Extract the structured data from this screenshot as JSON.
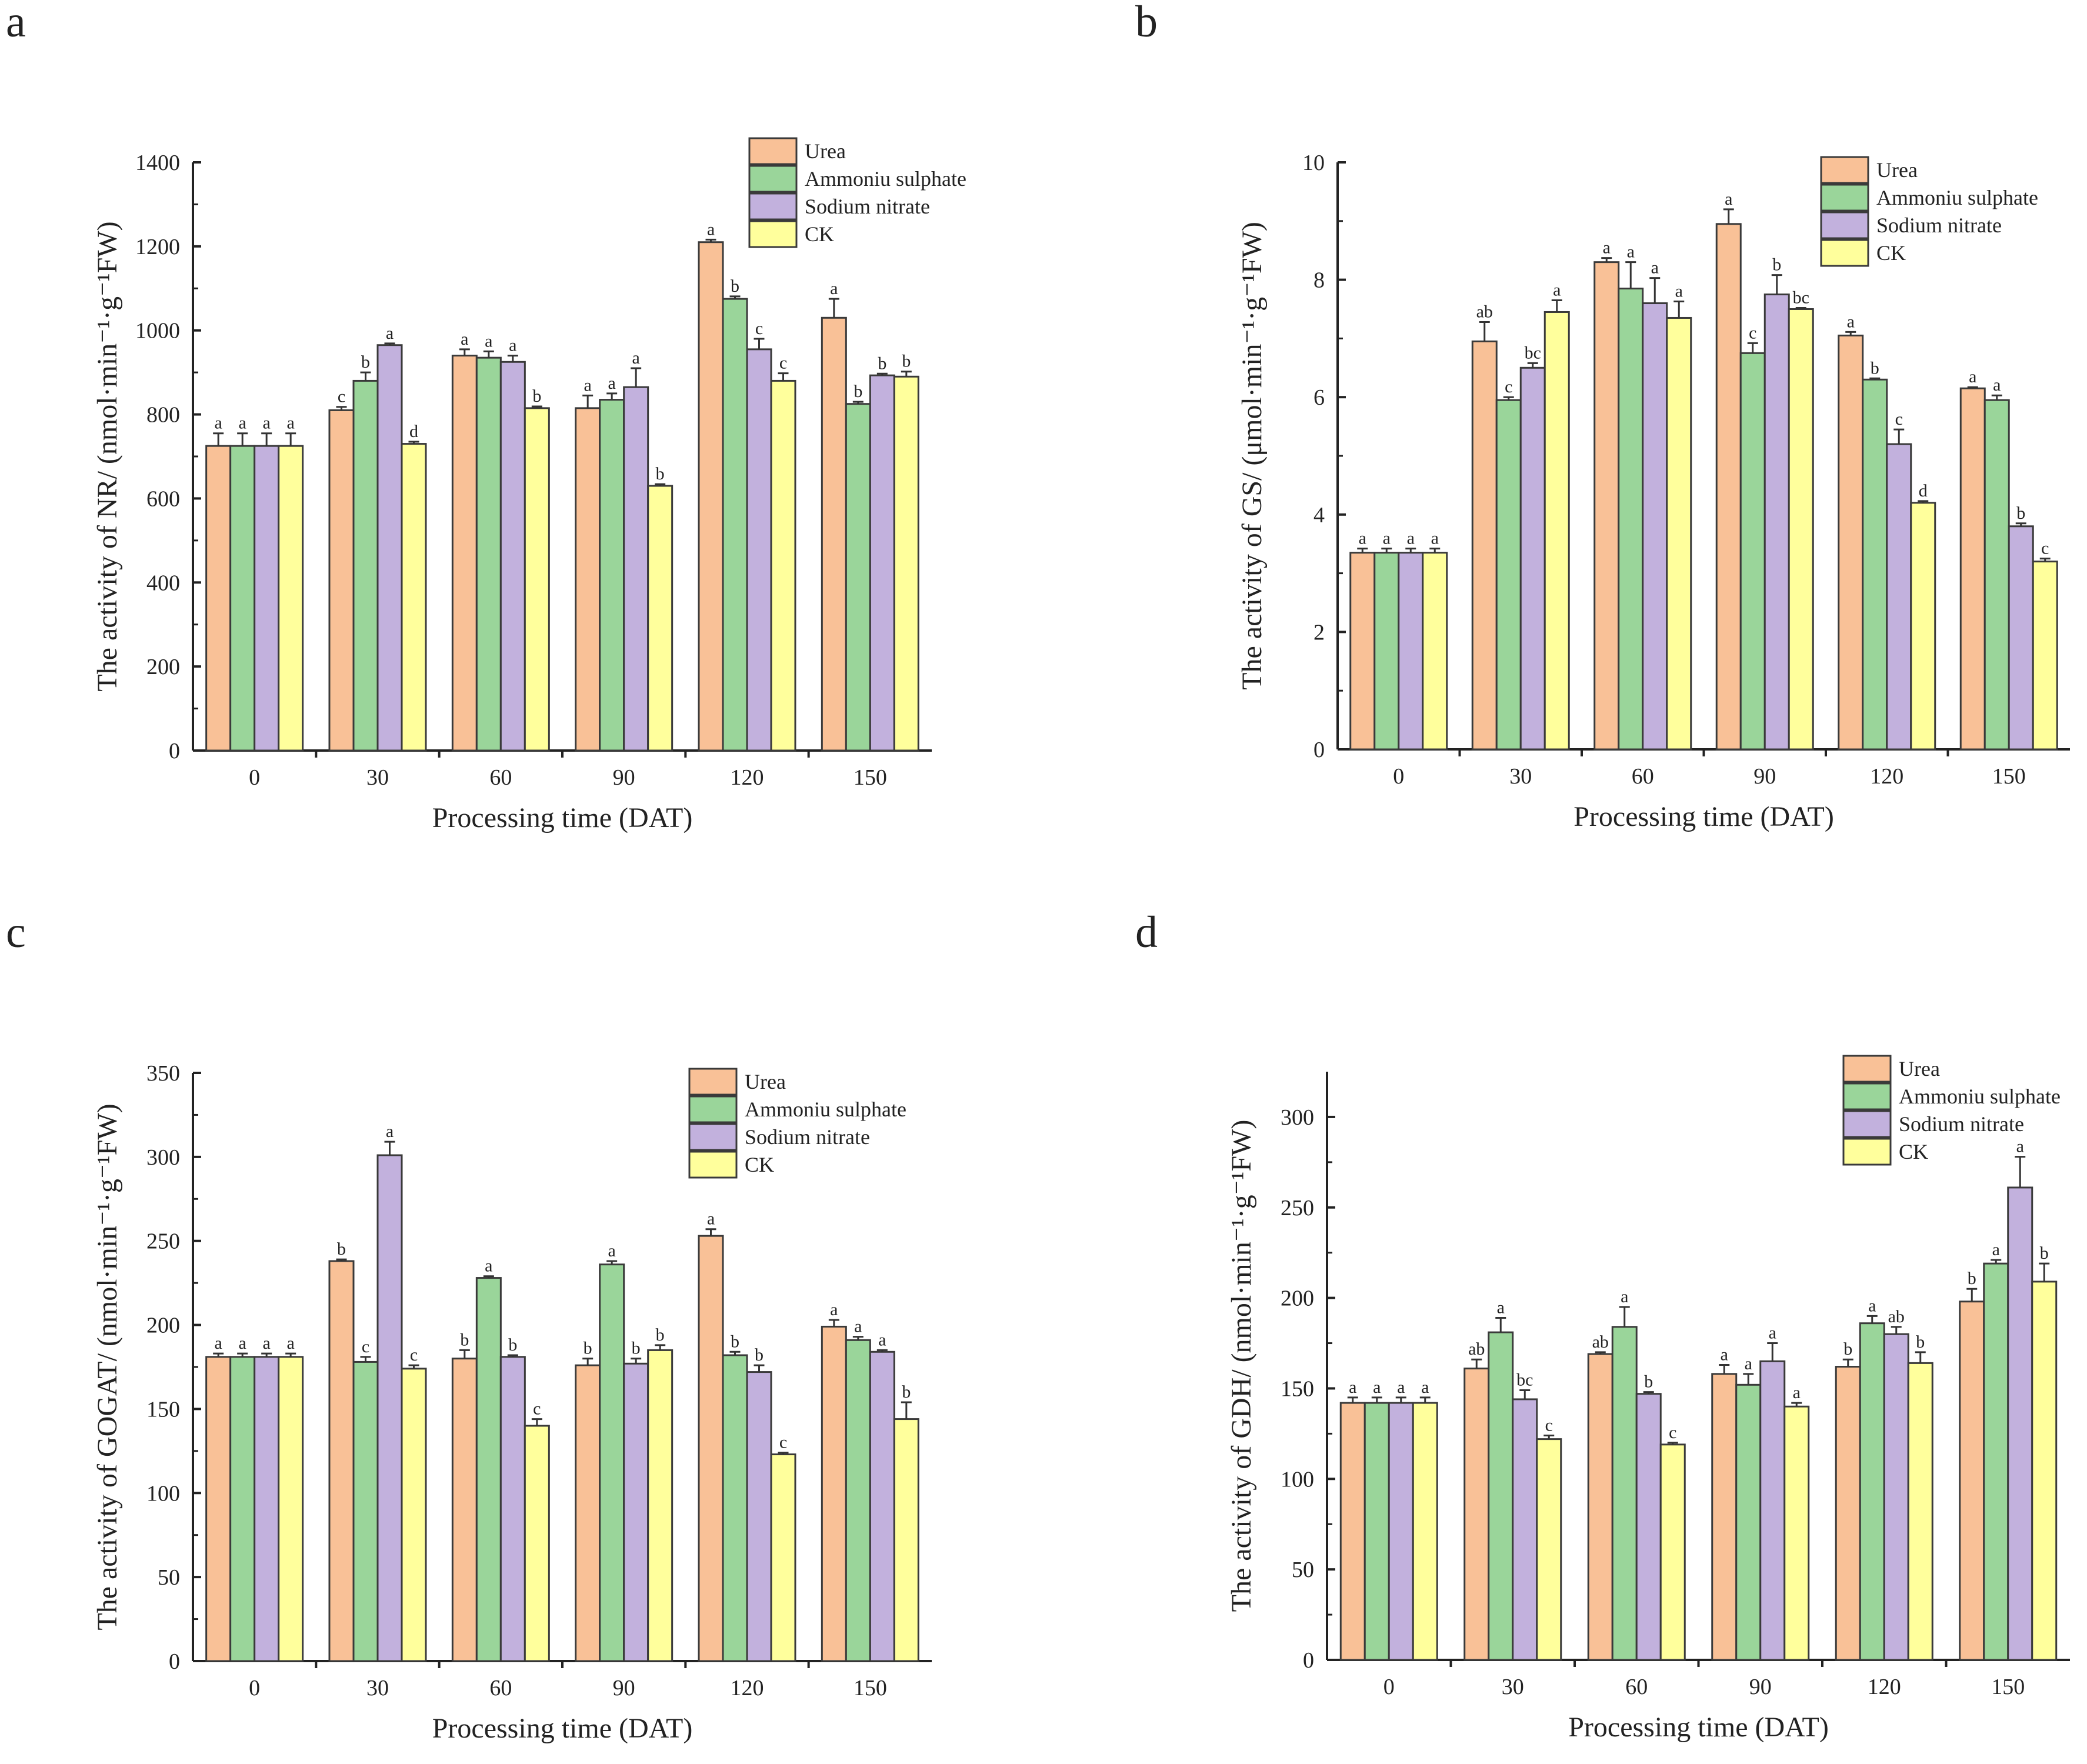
{
  "colors": {
    "Urea": "#F9C197",
    "Ammoniu sulphate": "#9AD59A",
    "Sodium nitrate": "#C2B1DD",
    "CK": "#FFFF9C",
    "edge": "#3a3a3a"
  },
  "chart_data": [
    {
      "panel": "a",
      "type": "bar",
      "categories": [
        "0",
        "30",
        "60",
        "90",
        "120",
        "150"
      ],
      "xlabel": "Processing time (DAT)",
      "ylabel": "The activity of NR/ (nmol·min⁻¹·g⁻¹FW)",
      "ylim": [
        0,
        1400
      ],
      "yticks": [
        0,
        200,
        400,
        600,
        800,
        1000,
        1200,
        1400
      ],
      "legend": "top-right",
      "series": [
        {
          "name": "Urea",
          "values": [
            725,
            810,
            940,
            815,
            1210,
            1030
          ],
          "errors": [
            30,
            8,
            15,
            30,
            6,
            45
          ],
          "letters": [
            "a",
            "c",
            "a",
            "a",
            "a",
            "a"
          ]
        },
        {
          "name": "Ammoniu sulphate",
          "values": [
            725,
            880,
            935,
            835,
            1075,
            825
          ],
          "errors": [
            30,
            20,
            15,
            15,
            6,
            5
          ],
          "letters": [
            "a",
            "b",
            "a",
            "a",
            "b",
            "b"
          ]
        },
        {
          "name": "Sodium nitrate",
          "values": [
            725,
            965,
            925,
            865,
            955,
            893
          ],
          "errors": [
            30,
            4,
            15,
            45,
            25,
            4
          ],
          "letters": [
            "a",
            "a",
            "a",
            "a",
            "c",
            "b"
          ]
        },
        {
          "name": "CK",
          "values": [
            725,
            730,
            815,
            630,
            880,
            890
          ],
          "errors": [
            30,
            5,
            4,
            4,
            18,
            12
          ],
          "letters": [
            "a",
            "d",
            "b",
            "b",
            "c",
            "b"
          ]
        }
      ]
    },
    {
      "panel": "b",
      "type": "bar",
      "categories": [
        "0",
        "30",
        "60",
        "90",
        "120",
        "150"
      ],
      "xlabel": "Processing time (DAT)",
      "ylabel": "The activity of GS/ (μmol·min⁻¹·g⁻¹FW)",
      "ylim": [
        0,
        10
      ],
      "yticks": [
        0,
        2,
        4,
        6,
        8,
        10
      ],
      "legend": "top-right",
      "series": [
        {
          "name": "Urea",
          "values": [
            3.35,
            6.95,
            8.3,
            8.95,
            7.05,
            6.15
          ],
          "errors": [
            0.07,
            0.33,
            0.07,
            0.25,
            0.06,
            0.02
          ],
          "letters": [
            "a",
            "ab",
            "a",
            "a",
            "a",
            "a"
          ]
        },
        {
          "name": "Ammoniu sulphate",
          "values": [
            3.35,
            5.95,
            7.85,
            6.75,
            6.3,
            5.95
          ],
          "errors": [
            0.07,
            0.05,
            0.45,
            0.17,
            0.02,
            0.08
          ],
          "letters": [
            "a",
            "c",
            "a",
            "c",
            "b",
            "a"
          ]
        },
        {
          "name": "Sodium nitrate",
          "values": [
            3.35,
            6.5,
            7.6,
            7.75,
            5.2,
            3.8
          ],
          "errors": [
            0.07,
            0.08,
            0.43,
            0.33,
            0.25,
            0.05
          ],
          "letters": [
            "a",
            "bc",
            "a",
            "b",
            "c",
            "b"
          ]
        },
        {
          "name": "CK",
          "values": [
            3.35,
            7.45,
            7.35,
            7.5,
            4.2,
            3.2
          ],
          "errors": [
            0.07,
            0.2,
            0.28,
            0.02,
            0.03,
            0.05
          ],
          "letters": [
            "a",
            "a",
            "a",
            "bc",
            "d",
            "c"
          ]
        }
      ]
    },
    {
      "panel": "c",
      "type": "bar",
      "categories": [
        "0",
        "30",
        "60",
        "90",
        "120",
        "150"
      ],
      "xlabel": "Processing time (DAT)",
      "ylabel": "The activity of GOGAT/ (nmol·min⁻¹·g⁻¹FW)",
      "ylim": [
        0,
        350
      ],
      "yticks": [
        0,
        50,
        100,
        150,
        200,
        250,
        300,
        350
      ],
      "legend": "top-right",
      "series": [
        {
          "name": "Urea",
          "values": [
            181,
            238,
            180,
            176,
            253,
            199
          ],
          "errors": [
            2,
            1,
            5,
            4,
            4,
            4
          ],
          "letters": [
            "a",
            "b",
            "b",
            "b",
            "a",
            "a"
          ]
        },
        {
          "name": "Ammoniu sulphate",
          "values": [
            181,
            178,
            228,
            236,
            182,
            191
          ],
          "errors": [
            2,
            3,
            1,
            2,
            2,
            2
          ],
          "letters": [
            "a",
            "c",
            "a",
            "a",
            "b",
            "a"
          ]
        },
        {
          "name": "Sodium nitrate",
          "values": [
            181,
            301,
            181,
            177,
            172,
            184
          ],
          "errors": [
            2,
            8,
            1,
            3,
            4,
            1
          ],
          "letters": [
            "a",
            "a",
            "b",
            "b",
            "b",
            "a"
          ]
        },
        {
          "name": "CK",
          "values": [
            181,
            174,
            140,
            185,
            123,
            144
          ],
          "errors": [
            2,
            2,
            4,
            3,
            1,
            10
          ],
          "letters": [
            "a",
            "c",
            "c",
            "b",
            "c",
            "b"
          ]
        }
      ]
    },
    {
      "panel": "d",
      "type": "bar",
      "categories": [
        "0",
        "30",
        "60",
        "90",
        "120",
        "150"
      ],
      "xlabel": "Processing time (DAT)",
      "ylabel": "The activity of GDH/ (nmol·min⁻¹·g⁻¹FW)",
      "ylim": [
        0,
        325
      ],
      "yticks": [
        0,
        50,
        100,
        150,
        200,
        250,
        300
      ],
      "legend": "top-right",
      "series": [
        {
          "name": "Urea",
          "values": [
            142,
            161,
            169,
            158,
            162,
            198
          ],
          "errors": [
            3,
            5,
            1,
            5,
            4,
            7
          ],
          "letters": [
            "a",
            "ab",
            "ab",
            "a",
            "b",
            "b"
          ]
        },
        {
          "name": "Ammoniu sulphate",
          "values": [
            142,
            181,
            184,
            152,
            186,
            219
          ],
          "errors": [
            3,
            8,
            11,
            6,
            4,
            2
          ],
          "letters": [
            "a",
            "a",
            "a",
            "a",
            "a",
            "a"
          ]
        },
        {
          "name": "Sodium nitrate",
          "values": [
            142,
            144,
            147,
            165,
            180,
            261
          ],
          "errors": [
            3,
            5,
            1,
            10,
            4,
            17
          ],
          "letters": [
            "a",
            "bc",
            "b",
            "a",
            "ab",
            "a"
          ]
        },
        {
          "name": "CK",
          "values": [
            142,
            122,
            119,
            140,
            164,
            209
          ],
          "errors": [
            3,
            2,
            1,
            2,
            6,
            10
          ],
          "letters": [
            "a",
            "c",
            "c",
            "a",
            "b",
            "b"
          ]
        }
      ]
    }
  ]
}
